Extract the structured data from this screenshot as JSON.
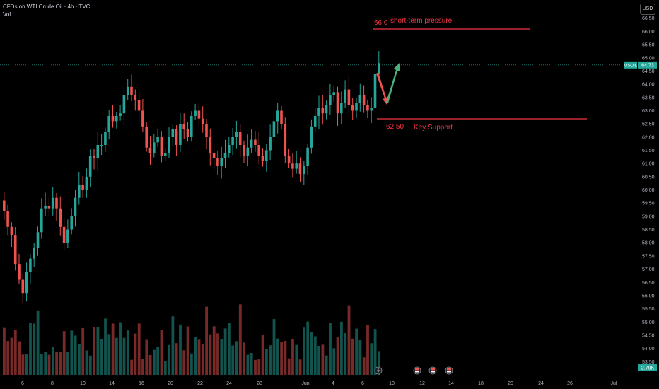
{
  "header": {
    "symbol_line": "CFDs on WTI Crude Oil · 4h · TVC",
    "indicator": "Vol",
    "currency_button": "USD"
  },
  "colors": {
    "up": "#26a69a",
    "down": "#ef5350",
    "annotation": "#f23645",
    "arrow_up": "#4caf7d",
    "badge": "#26a69a"
  },
  "price_badge": {
    "symbol": "USOIL",
    "value": "64.73"
  },
  "volume_badge": "2.79K",
  "annotations": [
    {
      "price": 66.0,
      "price_label": "66.0",
      "text": "short-term pressure"
    },
    {
      "price": 62.5,
      "price_label": "62.50",
      "text": "Key Support"
    }
  ],
  "icons": [
    "lightning-icon",
    "flag-icon",
    "flag-icon",
    "flag-icon"
  ],
  "chart_data": {
    "type": "candlestick",
    "ylim": [
      53.0,
      66.6
    ],
    "y_ticks": [
      "53.50",
      "54.00",
      "54.50",
      "55.00",
      "55.50",
      "56.00",
      "56.50",
      "57.00",
      "57.50",
      "58.00",
      "58.50",
      "59.00",
      "59.50",
      "60.00",
      "60.50",
      "61.00",
      "61.50",
      "62.00",
      "62.50",
      "63.00",
      "63.50",
      "64.00",
      "64.50",
      "65.00",
      "65.50",
      "66.00",
      "66.50"
    ],
    "x_ticks": [
      "6",
      "8",
      "10",
      "14",
      "16",
      "20",
      "22",
      "24",
      "28",
      "Jun",
      "4",
      "6",
      "10",
      "12",
      "14",
      "18",
      "20",
      "24",
      "26",
      "Jul"
    ],
    "closes": [
      59.2,
      58.6,
      58.3,
      57.2,
      56.6,
      56.1,
      56.9,
      57.4,
      57.8,
      58.4,
      59.3,
      59.4,
      59.3,
      59.7,
      59.3,
      58.6,
      58.0,
      58.5,
      59.0,
      59.7,
      60.2,
      60.0,
      60.5,
      61.3,
      61.2,
      61.7,
      61.7,
      62.2,
      62.8,
      62.6,
      62.8,
      62.9,
      63.6,
      63.9,
      63.6,
      63.4,
      63.0,
      62.4,
      61.6,
      61.4,
      61.8,
      62.0,
      61.3,
      61.4,
      62.0,
      62.3,
      61.7,
      62.5,
      62.3,
      62.0,
      62.8,
      63.0,
      62.7,
      62.5,
      62.0,
      61.4,
      61.2,
      60.9,
      61.2,
      61.4,
      61.7,
      62.0,
      62.2,
      61.7,
      61.3,
      61.6,
      61.9,
      61.7,
      61.3,
      61.1,
      61.5,
      62.0,
      62.6,
      63.0,
      62.5,
      61.3,
      61.0,
      60.8,
      61.0,
      60.6,
      60.9,
      61.6,
      62.4,
      62.8,
      63.1,
      62.9,
      63.2,
      63.6,
      63.7,
      62.9,
      63.3,
      63.8,
      63.2,
      63.0,
      63.3,
      63.6,
      63.2,
      63.0,
      63.1,
      64.4,
      64.8
    ],
    "volume_max_label": "2.79K"
  }
}
